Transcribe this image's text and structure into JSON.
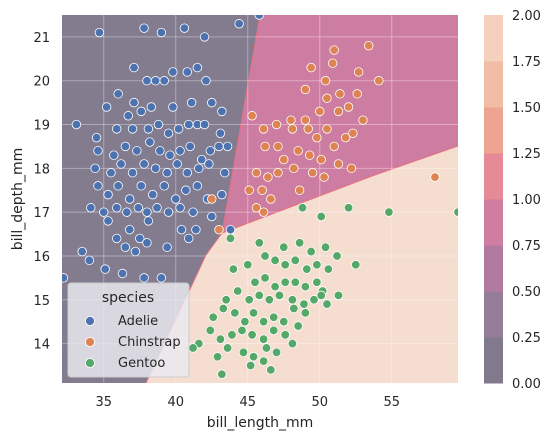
{
  "chart_data": {
    "type": "scatter",
    "xlabel": "bill_length_mm",
    "ylabel": "bill_depth_mm",
    "xlim": [
      32.1,
      59.6
    ],
    "ylim": [
      13.1,
      21.5
    ],
    "x_ticks": [
      35,
      40,
      45,
      50,
      55
    ],
    "y_ticks": [
      14,
      15,
      16,
      17,
      18,
      19,
      20,
      21
    ],
    "grid": true,
    "background": "decision-region contour fill",
    "legend": {
      "title": "species",
      "placement": "lower-left"
    },
    "series": [
      {
        "name": "Adelie",
        "color": "#4c72b0",
        "points": [
          [
            34.7,
            21.1
          ],
          [
            37.8,
            21.2
          ],
          [
            39.0,
            21.1
          ],
          [
            40.6,
            21.2
          ],
          [
            42.0,
            21.0
          ],
          [
            44.4,
            21.3
          ],
          [
            45.8,
            21.5
          ],
          [
            37.1,
            20.3
          ],
          [
            38.0,
            20.0
          ],
          [
            38.6,
            20.0
          ],
          [
            39.2,
            20.0
          ],
          [
            39.8,
            20.2
          ],
          [
            40.8,
            20.2
          ],
          [
            41.5,
            20.3
          ],
          [
            42.1,
            20.0
          ],
          [
            35.2,
            19.4
          ],
          [
            36.0,
            19.7
          ],
          [
            37.1,
            19.5
          ],
          [
            37.6,
            19.3
          ],
          [
            38.3,
            19.4
          ],
          [
            39.8,
            19.4
          ],
          [
            41.1,
            19.5
          ],
          [
            42.5,
            19.5
          ],
          [
            43.2,
            19.3
          ],
          [
            33.1,
            19.0
          ],
          [
            34.5,
            18.7
          ],
          [
            35.9,
            18.9
          ],
          [
            36.7,
            19.2
          ],
          [
            37.0,
            18.9
          ],
          [
            38.1,
            18.9
          ],
          [
            38.8,
            19.0
          ],
          [
            39.5,
            18.8
          ],
          [
            40.2,
            18.9
          ],
          [
            40.9,
            19.0
          ],
          [
            41.5,
            19.0
          ],
          [
            42.0,
            19.0
          ],
          [
            43.1,
            18.8
          ],
          [
            34.6,
            18.4
          ],
          [
            35.7,
            18.3
          ],
          [
            36.5,
            18.5
          ],
          [
            37.3,
            18.4
          ],
          [
            38.2,
            18.6
          ],
          [
            38.9,
            18.4
          ],
          [
            39.6,
            18.3
          ],
          [
            40.3,
            18.4
          ],
          [
            41.0,
            18.5
          ],
          [
            41.8,
            18.2
          ],
          [
            42.4,
            18.4
          ],
          [
            43.0,
            18.5
          ],
          [
            43.6,
            18.5
          ],
          [
            34.4,
            18.0
          ],
          [
            35.5,
            17.9
          ],
          [
            36.2,
            18.1
          ],
          [
            37.0,
            17.9
          ],
          [
            37.8,
            18.1
          ],
          [
            38.6,
            18.0
          ],
          [
            39.4,
            17.9
          ],
          [
            40.1,
            18.1
          ],
          [
            40.8,
            17.9
          ],
          [
            41.6,
            18.0
          ],
          [
            42.3,
            18.1
          ],
          [
            43.4,
            17.9
          ],
          [
            34.6,
            17.6
          ],
          [
            35.3,
            17.4
          ],
          [
            36.0,
            17.6
          ],
          [
            36.8,
            17.3
          ],
          [
            37.6,
            17.6
          ],
          [
            38.4,
            17.4
          ],
          [
            39.2,
            17.6
          ],
          [
            40.0,
            17.3
          ],
          [
            40.7,
            17.5
          ],
          [
            41.5,
            17.6
          ],
          [
            42.2,
            17.3
          ],
          [
            43.2,
            17.4
          ],
          [
            34.1,
            17.1
          ],
          [
            35.0,
            17.0
          ],
          [
            35.9,
            17.1
          ],
          [
            36.6,
            17.0
          ],
          [
            37.4,
            17.1
          ],
          [
            38.0,
            17.0
          ],
          [
            38.7,
            17.1
          ],
          [
            39.5,
            17.0
          ],
          [
            40.3,
            17.1
          ],
          [
            41.2,
            17.0
          ],
          [
            42.5,
            16.9
          ],
          [
            43.8,
            16.6
          ],
          [
            35.3,
            16.8
          ],
          [
            36.8,
            16.6
          ],
          [
            37.5,
            16.4
          ],
          [
            38.1,
            16.8
          ],
          [
            40.4,
            16.6
          ],
          [
            41.4,
            16.6
          ],
          [
            33.5,
            16.1
          ],
          [
            35.9,
            16.4
          ],
          [
            36.5,
            16.2
          ],
          [
            37.2,
            16.1
          ],
          [
            38.0,
            16.3
          ],
          [
            39.4,
            16.2
          ],
          [
            40.9,
            16.4
          ],
          [
            34.0,
            15.9
          ],
          [
            35.1,
            15.7
          ],
          [
            36.3,
            15.6
          ],
          [
            37.8,
            15.5
          ],
          [
            39.0,
            15.5
          ],
          [
            32.2,
            15.5
          ]
        ]
      },
      {
        "name": "Chinstrap",
        "color": "#dd8452",
        "points": [
          [
            51.0,
            20.7
          ],
          [
            53.4,
            20.8
          ],
          [
            49.4,
            20.3
          ],
          [
            50.4,
            20.0
          ],
          [
            50.9,
            20.4
          ],
          [
            52.7,
            20.2
          ],
          [
            54.1,
            20.0
          ],
          [
            49.0,
            19.8
          ],
          [
            51.4,
            19.7
          ],
          [
            52.6,
            19.7
          ],
          [
            45.3,
            19.2
          ],
          [
            47.0,
            19.0
          ],
          [
            48.0,
            19.1
          ],
          [
            49.0,
            19.1
          ],
          [
            50.0,
            19.3
          ],
          [
            50.5,
            19.6
          ],
          [
            51.3,
            19.3
          ],
          [
            52.0,
            19.4
          ],
          [
            53.0,
            19.1
          ],
          [
            46.1,
            18.9
          ],
          [
            47.1,
            18.5
          ],
          [
            48.1,
            18.9
          ],
          [
            49.2,
            18.9
          ],
          [
            49.8,
            18.7
          ],
          [
            50.5,
            18.9
          ],
          [
            51.0,
            18.5
          ],
          [
            51.8,
            18.7
          ],
          [
            52.3,
            18.8
          ],
          [
            46.2,
            18.5
          ],
          [
            47.5,
            18.2
          ],
          [
            48.5,
            18.4
          ],
          [
            49.3,
            18.3
          ],
          [
            50.1,
            18.2
          ],
          [
            51.3,
            18.1
          ],
          [
            52.2,
            18.0
          ],
          [
            45.6,
            17.9
          ],
          [
            46.4,
            17.8
          ],
          [
            47.1,
            17.9
          ],
          [
            48.2,
            18.0
          ],
          [
            49.5,
            17.9
          ],
          [
            50.3,
            17.8
          ],
          [
            45.1,
            17.5
          ],
          [
            46.0,
            17.5
          ],
          [
            46.6,
            17.3
          ],
          [
            48.6,
            17.5
          ],
          [
            42.5,
            17.3
          ],
          [
            45.6,
            17.1
          ],
          [
            46.1,
            17.0
          ],
          [
            43.0,
            16.6
          ],
          [
            58.0,
            17.8
          ]
        ]
      },
      {
        "name": "Gentoo",
        "color": "#55a868",
        "points": [
          [
            52.0,
            17.1
          ],
          [
            54.8,
            17.0
          ],
          [
            59.6,
            17.0
          ],
          [
            48.8,
            17.1
          ],
          [
            50.1,
            16.9
          ],
          [
            43.8,
            16.4
          ],
          [
            45.8,
            16.3
          ],
          [
            47.5,
            16.2
          ],
          [
            48.6,
            16.3
          ],
          [
            49.4,
            16.1
          ],
          [
            50.4,
            16.2
          ],
          [
            51.2,
            16.0
          ],
          [
            46.2,
            16.0
          ],
          [
            46.9,
            15.9
          ],
          [
            47.6,
            15.8
          ],
          [
            48.3,
            15.9
          ],
          [
            49.1,
            15.7
          ],
          [
            49.8,
            15.8
          ],
          [
            50.6,
            15.7
          ],
          [
            52.5,
            15.8
          ],
          [
            44.0,
            15.7
          ],
          [
            45.0,
            15.8
          ],
          [
            45.5,
            15.4
          ],
          [
            46.2,
            15.5
          ],
          [
            46.9,
            15.3
          ],
          [
            47.6,
            15.4
          ],
          [
            48.3,
            15.4
          ],
          [
            49.0,
            15.3
          ],
          [
            49.8,
            15.4
          ],
          [
            50.2,
            15.2
          ],
          [
            43.5,
            15.0
          ],
          [
            44.3,
            15.2
          ],
          [
            45.1,
            15.0
          ],
          [
            45.8,
            15.1
          ],
          [
            46.5,
            15.0
          ],
          [
            47.2,
            15.1
          ],
          [
            48.1,
            15.0
          ],
          [
            48.9,
            14.9
          ],
          [
            49.6,
            15.0
          ],
          [
            50.1,
            15.1
          ],
          [
            50.5,
            14.9
          ],
          [
            51.3,
            15.1
          ],
          [
            42.6,
            14.6
          ],
          [
            43.3,
            14.8
          ],
          [
            44.1,
            14.7
          ],
          [
            44.8,
            14.5
          ],
          [
            45.4,
            14.7
          ],
          [
            46.1,
            14.5
          ],
          [
            46.8,
            14.6
          ],
          [
            47.5,
            14.5
          ],
          [
            48.2,
            14.8
          ],
          [
            49.0,
            14.7
          ],
          [
            42.4,
            14.3
          ],
          [
            43.1,
            14.1
          ],
          [
            43.9,
            14.2
          ],
          [
            44.6,
            14.3
          ],
          [
            45.3,
            14.2
          ],
          [
            46.1,
            14.1
          ],
          [
            46.8,
            14.3
          ],
          [
            47.6,
            14.2
          ],
          [
            48.5,
            14.4
          ],
          [
            43.6,
            13.9
          ],
          [
            44.7,
            13.8
          ],
          [
            45.4,
            13.7
          ],
          [
            46.3,
            13.9
          ],
          [
            47.0,
            13.8
          ],
          [
            48.1,
            14.0
          ],
          [
            41.6,
            14.0
          ],
          [
            41.2,
            13.9
          ],
          [
            42.9,
            13.7
          ],
          [
            45.2,
            13.5
          ],
          [
            46.1,
            13.6
          ],
          [
            46.6,
            13.4
          ],
          [
            43.2,
            13.3
          ]
        ]
      }
    ]
  },
  "colorbar": {
    "ticks": [
      "0.00",
      "0.25",
      "0.50",
      "0.75",
      "1.00",
      "1.25",
      "1.50",
      "1.75",
      "2.00"
    ],
    "colors": [
      "#817a8c",
      "#957d99",
      "#b37aa0",
      "#cf7da1",
      "#e68a98",
      "#eda491",
      "#f1bca6",
      "#f4d0bd"
    ]
  }
}
